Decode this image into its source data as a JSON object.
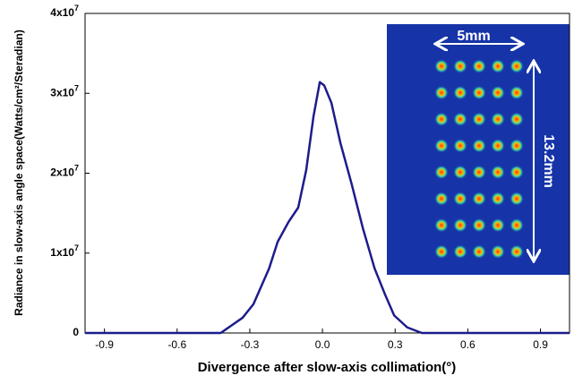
{
  "chart_data": {
    "type": "line",
    "x_label": "Divergence after slow-axis collimation(°)",
    "y_label": "Radiance in slow-axis angle space(Watts/cm²/Steradian)",
    "x": [
      -0.98,
      -0.42,
      -0.33,
      -0.285,
      -0.22,
      -0.185,
      -0.14,
      -0.1,
      -0.067,
      -0.037,
      -0.011,
      0.007,
      0.037,
      0.074,
      0.12,
      0.167,
      0.215,
      0.26,
      0.296,
      0.35,
      0.41,
      1.02
    ],
    "series": [
      {
        "color": "#1c1c8c",
        "values": [
          0,
          0,
          1900000,
          3600000,
          8100000,
          11400000,
          13900000,
          15700000,
          20400000,
          27100000,
          31400000,
          31000000,
          28800000,
          23800000,
          18700000,
          13100000,
          8100000,
          4700000,
          2200000,
          700000,
          0,
          0
        ]
      }
    ],
    "xlim": [
      -0.98,
      1.02
    ],
    "ylim": [
      0,
      40000000
    ],
    "xticks": [
      -0.9,
      -0.6,
      -0.3,
      {
        "value": 0,
        "label": "0.0"
      },
      0.3,
      0.6,
      0.9
    ],
    "yticks": [
      0,
      {
        "value": 10000000,
        "label": "1x107"
      },
      {
        "value": 20000000,
        "label": "2x107"
      },
      {
        "value": 30000000,
        "label": "3x107"
      },
      {
        "value": 40000000,
        "label": "4x107"
      }
    ],
    "annotations": [
      "5mm",
      "13.2mm"
    ]
  }
}
